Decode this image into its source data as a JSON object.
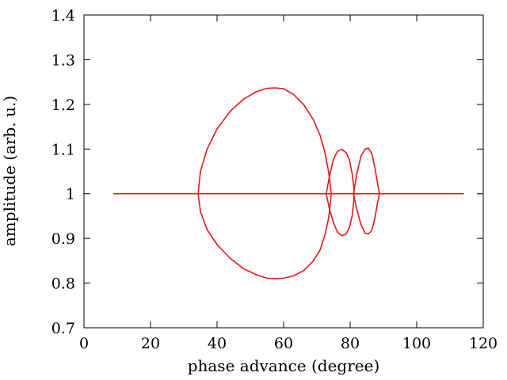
{
  "chart_data": {
    "type": "line",
    "xlabel": "phase advance (degree)",
    "ylabel": "amplitude (arb. u.)",
    "xlim": [
      0,
      120
    ],
    "ylim": [
      0.7,
      1.4
    ],
    "xticks": [
      0,
      20,
      40,
      60,
      80,
      100,
      120
    ],
    "yticks": [
      0.7,
      0.8,
      0.9,
      1.0,
      1.1,
      1.2,
      1.3,
      1.4
    ],
    "xtick_labels": [
      "0",
      "20",
      "40",
      "60",
      "80",
      "100",
      "120"
    ],
    "ytick_labels": [
      "0.7",
      "0.8",
      "0.9",
      "1",
      "1.1",
      "1.2",
      "1.3",
      "1.4"
    ],
    "grid": false,
    "legend": "none",
    "line_color": "#e41a1c",
    "series": [
      {
        "x": [
          9,
          114
        ],
        "y": [
          1.0,
          1.0
        ]
      },
      {
        "x": [
          34.3,
          35.0,
          37.0,
          40.0,
          44.0,
          48.0,
          52.0,
          55.0,
          57.5,
          60.0,
          63.0,
          66.0,
          69.0,
          71.0,
          72.5,
          73.5,
          74.0,
          74.3,
          74.0,
          73.5,
          72.5,
          71.0,
          69.0,
          66.0,
          63.0,
          60.0,
          57.5,
          55.0,
          52.0,
          48.0,
          44.0,
          40.0,
          37.0,
          35.0,
          34.3
        ],
        "y": [
          1.0,
          1.05,
          1.1,
          1.145,
          1.185,
          1.212,
          1.229,
          1.236,
          1.237,
          1.235,
          1.222,
          1.2,
          1.165,
          1.13,
          1.09,
          1.05,
          1.02,
          1.0,
          0.975,
          0.945,
          0.91,
          0.875,
          0.85,
          0.828,
          0.816,
          0.811,
          0.81,
          0.811,
          0.818,
          0.832,
          0.855,
          0.886,
          0.92,
          0.96,
          1.0
        ]
      },
      {
        "x": [
          72.8,
          73.8,
          75.0,
          76.2,
          77.5,
          78.8,
          79.8,
          80.6,
          81.1,
          81.2,
          81.1,
          80.6,
          79.8,
          78.8,
          77.5,
          76.2,
          75.0,
          73.8,
          72.8
        ],
        "y": [
          1.0,
          1.04,
          1.078,
          1.095,
          1.099,
          1.092,
          1.075,
          1.045,
          1.015,
          1.0,
          0.985,
          0.95,
          0.925,
          0.91,
          0.906,
          0.914,
          0.935,
          0.965,
          1.0
        ]
      },
      {
        "x": [
          81.0,
          82.0,
          83.3,
          84.5,
          85.5,
          86.5,
          87.4,
          88.2,
          88.8,
          88.2,
          87.4,
          86.5,
          85.5,
          84.5,
          83.3,
          82.0,
          81.0
        ],
        "y": [
          1.0,
          1.045,
          1.085,
          1.1,
          1.102,
          1.09,
          1.06,
          1.025,
          1.0,
          0.978,
          0.945,
          0.918,
          0.91,
          0.911,
          0.93,
          0.965,
          1.0
        ]
      }
    ]
  }
}
